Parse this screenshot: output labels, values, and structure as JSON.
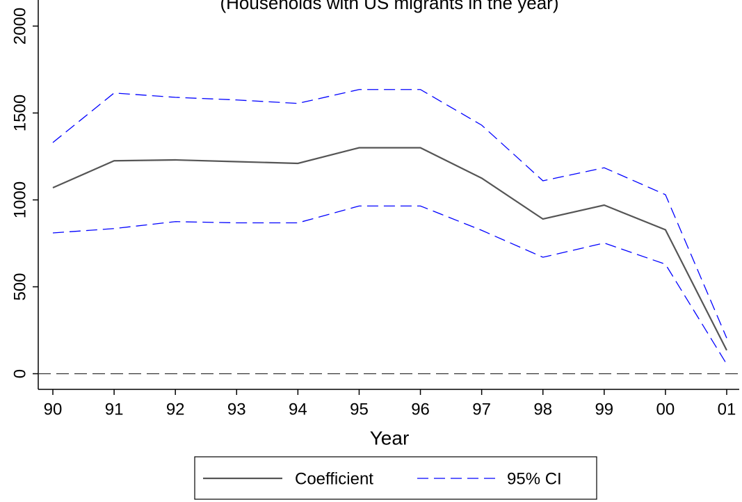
{
  "chart_data": {
    "type": "line",
    "subtitle": "(Households with US migrants in the year)",
    "x_label": "Year",
    "categories": [
      "90",
      "91",
      "92",
      "93",
      "94",
      "95",
      "96",
      "97",
      "98",
      "99",
      "00",
      "01"
    ],
    "series": [
      {
        "name": "Coefficient",
        "color": "#555555",
        "values": [
          1070,
          1225,
          1230,
          1220,
          1210,
          1300,
          1300,
          1125,
          890,
          970,
          828,
          135
        ]
      },
      {
        "name": "95% CI",
        "color": "#0000ff",
        "dashed": true,
        "upper": [
          1330,
          1615,
          1590,
          1575,
          1555,
          1635,
          1635,
          1430,
          1110,
          1185,
          1030,
          205
        ],
        "lower": [
          810,
          835,
          875,
          868,
          868,
          965,
          965,
          825,
          670,
          752,
          630,
          55
        ]
      }
    ],
    "reference_line": 0,
    "ylim": [
      -90,
      2150
    ],
    "yticks": [
      0,
      500,
      1000,
      1500,
      2000
    ],
    "legend": "bottom"
  }
}
